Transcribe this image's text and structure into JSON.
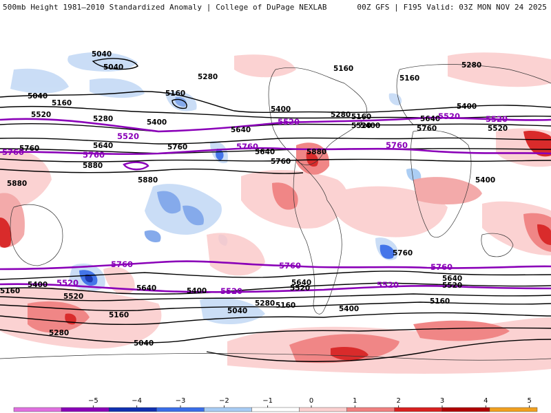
{
  "header": {
    "title": "500mb Height 1981–2010 Standardized Anomaly | College of DuPage NEXLAB",
    "run_info": "00Z GFS | F195 Valid: 03Z MON NOV 24 2025"
  },
  "contour_labels": {
    "black": [
      "5040",
      "5280",
      "5160",
      "5160",
      "5040",
      "5280",
      "5160",
      "5400",
      "5520",
      "5640",
      "5760",
      "5880",
      "5880",
      "5880",
      "5760",
      "5640",
      "5400",
      "5280",
      "5160",
      "5040",
      "5400",
      "5520",
      "5640",
      "5760",
      "5280",
      "5160",
      "5400",
      "5520",
      "5640",
      "5760",
      "5880",
      "5400",
      "5640",
      "5520",
      "5400",
      "5280",
      "5160",
      "5040",
      "5160",
      "5400",
      "5520",
      "5640",
      "5280",
      "5160",
      "5040",
      "5400",
      "5520",
      "5640",
      "5160",
      "5760"
    ],
    "purple": [
      "5520",
      "5760",
      "5520",
      "5760",
      "5520",
      "5520",
      "5760",
      "5760",
      "5760",
      "5520",
      "5520",
      "5760",
      "5760",
      "5520"
    ]
  },
  "colorbar": {
    "ticks": [
      "−5",
      "−4",
      "−3",
      "−2",
      "−1",
      "0",
      "1",
      "2",
      "3",
      "4",
      "5"
    ],
    "colors": [
      "#e070e0",
      "#8a00b8",
      "#1030b0",
      "#3a6ee8",
      "#a8ccf4",
      "#ffffff",
      "#fbd0d0",
      "#f08080",
      "#d82020",
      "#b00000",
      "#f0a020"
    ]
  },
  "colors": {
    "ocean": "#ffffff",
    "land": "#ffffff",
    "contour": "#000000",
    "thickness": "#8a00b8"
  }
}
